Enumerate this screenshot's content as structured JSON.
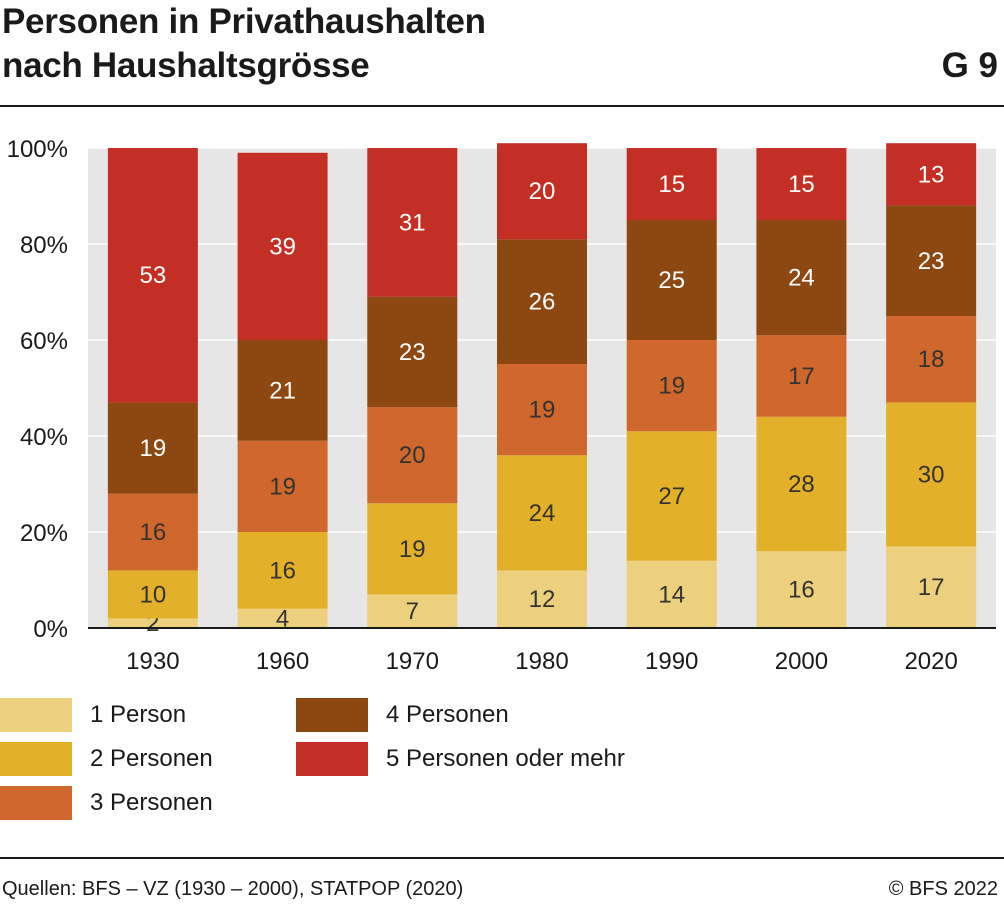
{
  "title_line1": "Personen in Privathaushalten",
  "title_line2": "nach Haushaltsgrösse",
  "figure_code": "G 9",
  "footer": {
    "source": "Quellen: BFS – VZ (1930 – 2000), STATPOP (2020)",
    "copyright": "© BFS 2022"
  },
  "chart_data": {
    "type": "bar",
    "stacked": true,
    "categories": [
      "1930",
      "1960",
      "1970",
      "1980",
      "1990",
      "2000",
      "2020"
    ],
    "series": [
      {
        "name": "1 Person",
        "color": "#EDD07E",
        "values": [
          2,
          4,
          7,
          12,
          14,
          16,
          17
        ]
      },
      {
        "name": "2 Personen",
        "color": "#E3B02A",
        "values": [
          10,
          16,
          19,
          24,
          27,
          28,
          30
        ]
      },
      {
        "name": "3 Personen",
        "color": "#D0672C",
        "values": [
          16,
          19,
          20,
          19,
          19,
          17,
          18
        ]
      },
      {
        "name": "4 Personen",
        "color": "#8D4710",
        "values": [
          19,
          21,
          23,
          26,
          25,
          24,
          23
        ]
      },
      {
        "name": "5 Personen oder mehr",
        "color": "#C42F25",
        "values": [
          53,
          39,
          31,
          20,
          15,
          15,
          13
        ]
      }
    ],
    "y_ticks": [
      "0%",
      "20%",
      "40%",
      "60%",
      "80%",
      "100%"
    ],
    "ylim": [
      0,
      100
    ],
    "grid": true,
    "plot_background": "#E6E6E6",
    "legend_position": "bottom"
  }
}
